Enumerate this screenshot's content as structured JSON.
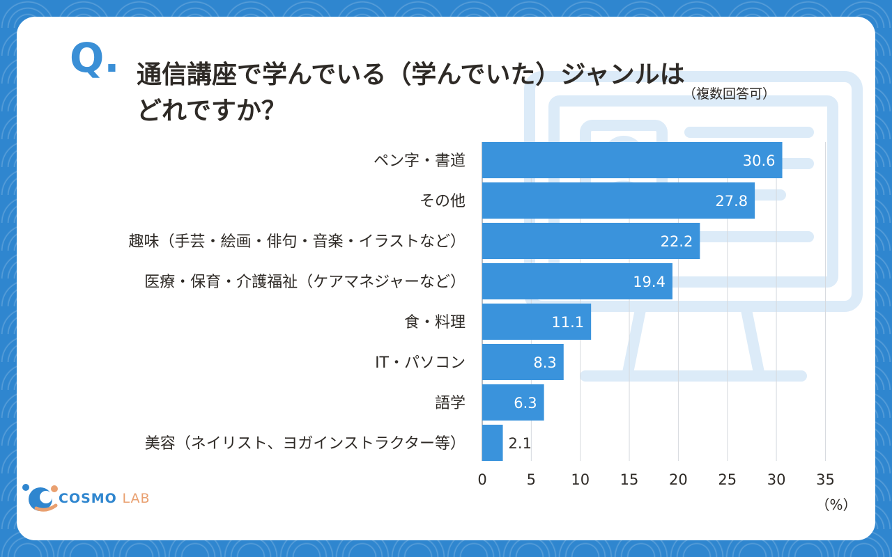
{
  "question": {
    "mark": "Q",
    "mark_dot": ".",
    "title_line1": "通信講座で学んでいる（学んでいた）ジャンルは",
    "title_line2": "どれですか？",
    "note": "（複数回答可）"
  },
  "logo": {
    "brand": "COSMO",
    "suffix": "LAB",
    "colors": {
      "primary": "#2f86cf",
      "accent": "#e9a070"
    }
  },
  "colors": {
    "background": "#2f86cf",
    "bar": "#3a93dc",
    "q_mark": "#3a8fd6",
    "text": "#2e2a26",
    "deco": "#dcebf8"
  },
  "chart_data": {
    "type": "bar",
    "orientation": "horizontal",
    "categories": [
      "ペン字・書道",
      "その他",
      "趣味（手芸・絵画・俳句・音楽・イラストなど）",
      "医療・保育・介護福祉（ケアマネジャーなど）",
      "食・料理",
      "IT・パソコン",
      "語学",
      "美容（ネイリスト、ヨガインストラクター等）"
    ],
    "values": [
      30.6,
      27.8,
      22.2,
      19.4,
      11.1,
      8.3,
      6.3,
      2.1
    ],
    "value_labels": [
      "30.6",
      "27.8",
      "22.2",
      "19.4",
      "11.1",
      "8.3",
      "6.3",
      "2.1"
    ],
    "x_ticks": [
      "0",
      "5",
      "10",
      "15",
      "20",
      "25",
      "30",
      "35"
    ],
    "xlim": [
      0,
      35
    ],
    "unit": "（%）",
    "grid": true,
    "legend": "none"
  }
}
